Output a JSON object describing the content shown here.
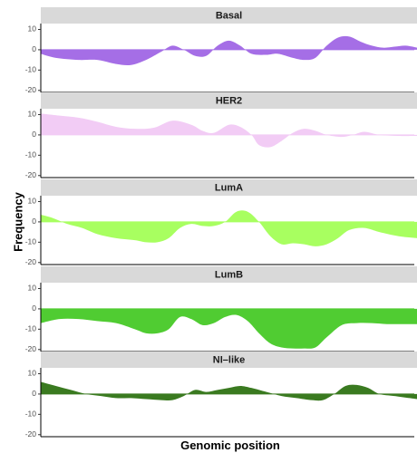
{
  "chart_data": {
    "type": "area",
    "xlabel": "Genomic position",
    "ylabel": "Frequency",
    "ylim": [
      -21,
      12
    ],
    "yticks": [
      10,
      0,
      -10,
      -20
    ],
    "grid": false,
    "panels": [
      {
        "name": "Basal",
        "color": "#a56ee6",
        "x": [
          0,
          0.04,
          0.1,
          0.15,
          0.2,
          0.24,
          0.28,
          0.32,
          0.35,
          0.38,
          0.41,
          0.44,
          0.47,
          0.5,
          0.53,
          0.56,
          0.6,
          0.63,
          0.67,
          0.7,
          0.73,
          0.76,
          0.79,
          0.82,
          0.85,
          0.88,
          0.91,
          0.94,
          0.97,
          1.0
        ],
        "values": [
          -2,
          -4,
          -5,
          -5,
          -7,
          -7.5,
          -5,
          -1,
          2,
          0,
          -3,
          -3,
          2,
          4.5,
          2,
          -2,
          -2.5,
          -2,
          -4,
          -5,
          -4,
          2,
          6,
          6.5,
          4,
          2,
          1,
          1.5,
          2,
          1
        ]
      },
      {
        "name": "HER2",
        "color": "#f2ccf5",
        "x": [
          0,
          0.05,
          0.1,
          0.15,
          0.2,
          0.25,
          0.3,
          0.35,
          0.4,
          0.43,
          0.46,
          0.5,
          0.53,
          0.56,
          0.58,
          0.61,
          0.64,
          0.67,
          0.7,
          0.73,
          0.76,
          0.8,
          0.83,
          0.86,
          0.9,
          0.95,
          1.0
        ],
        "values": [
          10.5,
          9.5,
          8.5,
          6.5,
          4,
          3,
          3.5,
          7,
          5,
          2,
          1,
          5,
          4,
          0,
          -5,
          -6,
          -3,
          1,
          3,
          2,
          0,
          -1,
          0,
          1.5,
          0,
          -0.5,
          -0.5
        ]
      },
      {
        "name": "LumA",
        "color": "#a8ff60",
        "x": [
          0,
          0.03,
          0.07,
          0.11,
          0.15,
          0.2,
          0.25,
          0.28,
          0.31,
          0.34,
          0.37,
          0.4,
          0.43,
          0.46,
          0.49,
          0.52,
          0.55,
          0.58,
          0.61,
          0.64,
          0.67,
          0.7,
          0.73,
          0.76,
          0.79,
          0.82,
          0.86,
          0.9,
          0.95,
          1.0
        ],
        "values": [
          3.5,
          2,
          -1,
          -3,
          -6,
          -8,
          -9,
          -10,
          -10,
          -8,
          -3,
          -1,
          -2,
          -2,
          0,
          5,
          5,
          0,
          -7,
          -11,
          -10.5,
          -11,
          -12,
          -11,
          -8,
          -4,
          -3,
          -5,
          -7,
          -8
        ]
      },
      {
        "name": "LumB",
        "color": "#50cc32",
        "x": [
          0,
          0.05,
          0.1,
          0.15,
          0.2,
          0.25,
          0.28,
          0.31,
          0.34,
          0.37,
          0.4,
          0.43,
          0.46,
          0.49,
          0.52,
          0.55,
          0.58,
          0.61,
          0.64,
          0.67,
          0.7,
          0.73,
          0.76,
          0.8,
          0.84,
          0.88,
          0.92,
          0.96,
          1.0
        ],
        "values": [
          -7,
          -5,
          -5,
          -6,
          -7,
          -10,
          -12,
          -12,
          -10,
          -4,
          -5,
          -8,
          -7,
          -4,
          -3,
          -6,
          -12,
          -17,
          -19,
          -19.5,
          -19.5,
          -19,
          -14,
          -8,
          -7,
          -7,
          -7.5,
          -7.5,
          -7.5
        ]
      },
      {
        "name": "NI–like",
        "color": "#3a7a20",
        "x": [
          0,
          0.04,
          0.08,
          0.12,
          0.16,
          0.2,
          0.24,
          0.28,
          0.32,
          0.35,
          0.38,
          0.41,
          0.44,
          0.47,
          0.5,
          0.53,
          0.56,
          0.6,
          0.64,
          0.68,
          0.72,
          0.75,
          0.78,
          0.81,
          0.84,
          0.87,
          0.9,
          0.94,
          1.0
        ],
        "values": [
          6,
          4,
          2,
          0,
          -1,
          -2,
          -2,
          -2.5,
          -3,
          -3,
          -1,
          2,
          1,
          2,
          3,
          4,
          3,
          1,
          -1,
          -2,
          -3,
          -3,
          0,
          4,
          4.5,
          3,
          0,
          -1,
          -2.5
        ]
      }
    ]
  }
}
